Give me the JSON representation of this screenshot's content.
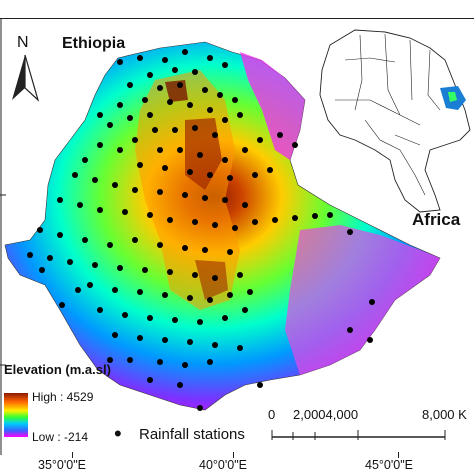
{
  "map": {
    "north_label": "N",
    "country_label": "Ethiopia",
    "inset_label": "Africa",
    "colors": {
      "elev_low": "#ff00ff",
      "elev_mid_low": "#0099ff",
      "elev_mid": "#00ff55",
      "elev_mid_high": "#ffee00",
      "elev_high": "#cc4400",
      "elev_peak": "#8b1a00",
      "station": "#000000",
      "inset_highlight": "#1a7fd4"
    }
  },
  "legend": {
    "title": "Elevation (m.a.sl)",
    "high_label": "High : 4529",
    "low_label": "Low : -214",
    "station_symbol": "•",
    "station_label": "Rainfall stations"
  },
  "scale_bar": {
    "labels": [
      "0",
      "2,0004,000",
      "8,000 K"
    ]
  },
  "axis": {
    "longitude_labels": [
      "35°0'0\"E",
      "40°0'0\"E",
      "45°0'0\"E"
    ]
  }
}
